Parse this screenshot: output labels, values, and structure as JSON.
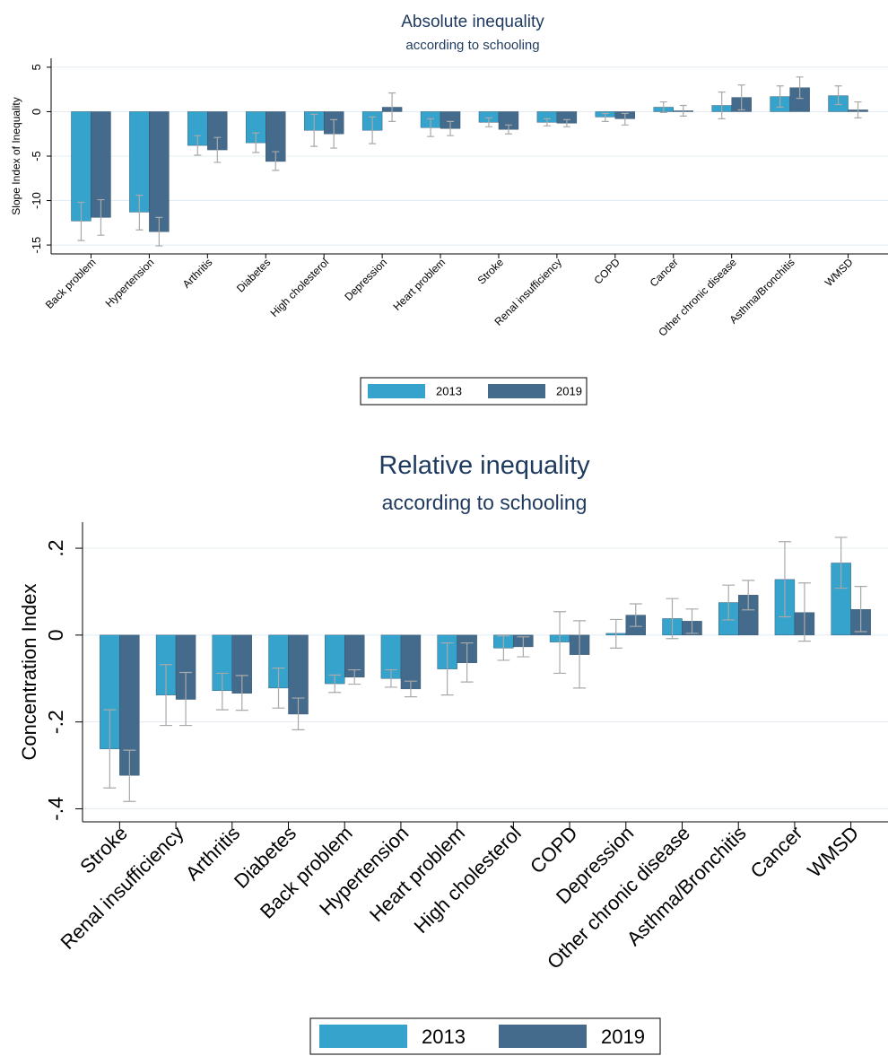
{
  "colors": {
    "y2013": "#35a3cc",
    "y2019": "#456b8c",
    "error": "#a9a9a9"
  },
  "chart_data": [
    {
      "type": "bar",
      "title": "Absolute inequality",
      "subtitle": "according to schooling",
      "ylabel": "Slope Index of Inequality",
      "ylim": [
        -16,
        6
      ],
      "yticks": [
        5,
        0,
        -5,
        -10,
        -15
      ],
      "ytick_labels": [
        "5",
        "0",
        "-5",
        "-10",
        "-15"
      ],
      "grid": true,
      "legend_position": "bottom",
      "categories": [
        "Back problem",
        "Hypertension",
        "Arthritis",
        "Diabetes",
        "High cholesterol",
        "Depression",
        "Heart problem",
        "Stroke",
        "Renal insufficiency",
        "COPD",
        "Cancer",
        "Other chronic disease",
        "Asthma/Bronchitis",
        "WMSD"
      ],
      "series": [
        {
          "name": "2013",
          "values": [
            -12.3,
            -11.3,
            -3.8,
            -3.5,
            -2.1,
            -2.1,
            -1.8,
            -1.2,
            -1.2,
            -0.6,
            0.5,
            0.7,
            1.7,
            1.8
          ],
          "lower": [
            -14.5,
            -13.3,
            -4.9,
            -4.6,
            -3.9,
            -3.6,
            -2.8,
            -1.7,
            -1.6,
            -1.1,
            -0.1,
            -0.8,
            0.5,
            0.8
          ],
          "upper": [
            -10.2,
            -9.4,
            -2.7,
            -2.4,
            -0.3,
            -0.6,
            -0.8,
            -0.7,
            -0.8,
            -0.2,
            1.1,
            2.2,
            2.9,
            2.9
          ]
        },
        {
          "name": "2019",
          "values": [
            -11.9,
            -13.5,
            -4.3,
            -5.6,
            -2.5,
            0.5,
            -1.9,
            -2.0,
            -1.3,
            -0.8,
            0.1,
            1.6,
            2.7,
            0.2
          ],
          "lower": [
            -13.9,
            -15.1,
            -5.7,
            -6.6,
            -4.1,
            -1.1,
            -2.7,
            -2.5,
            -1.7,
            -1.5,
            -0.5,
            0.2,
            1.5,
            -0.7
          ],
          "upper": [
            -9.9,
            -11.9,
            -2.9,
            -4.5,
            -0.9,
            2.1,
            -1.1,
            -1.5,
            -0.9,
            -0.2,
            0.7,
            3.0,
            3.9,
            1.1
          ]
        }
      ]
    },
    {
      "type": "bar",
      "title": "Relative inequality",
      "subtitle": "according to schooling",
      "ylabel": "Concentration Index",
      "ylim": [
        -0.43,
        0.26
      ],
      "yticks": [
        0.2,
        0,
        -0.2,
        -0.4
      ],
      "ytick_labels": [
        ".2",
        "0",
        "-.2",
        "-.4"
      ],
      "grid": true,
      "legend_position": "bottom",
      "categories": [
        "Stroke",
        "Renal insufficiency",
        "Arthritis",
        "Diabetes",
        "Back problem",
        "Hypertension",
        "Heart problem",
        "High cholesterol",
        "COPD",
        "Depression",
        "Other chronic disease",
        "Asthma/Bronchitis",
        "Cancer",
        "WMSD"
      ],
      "series": [
        {
          "name": "2013",
          "values": [
            -0.262,
            -0.138,
            -0.128,
            -0.122,
            -0.112,
            -0.1,
            -0.078,
            -0.03,
            -0.016,
            0.004,
            0.038,
            0.075,
            0.128,
            0.166
          ],
          "lower": [
            -0.352,
            -0.208,
            -0.172,
            -0.168,
            -0.132,
            -0.12,
            -0.138,
            -0.058,
            -0.088,
            -0.03,
            -0.008,
            0.035,
            0.042,
            0.108
          ],
          "upper": [
            -0.172,
            -0.068,
            -0.088,
            -0.076,
            -0.092,
            -0.08,
            -0.018,
            -0.002,
            0.054,
            0.036,
            0.084,
            0.115,
            0.215,
            0.225
          ]
        },
        {
          "name": "2019",
          "values": [
            -0.323,
            -0.148,
            -0.134,
            -0.182,
            -0.097,
            -0.124,
            -0.064,
            -0.027,
            -0.045,
            0.046,
            0.032,
            0.092,
            0.052,
            0.059
          ],
          "lower": [
            -0.383,
            -0.208,
            -0.173,
            -0.218,
            -0.113,
            -0.142,
            -0.108,
            -0.05,
            -0.122,
            0.02,
            0.004,
            0.058,
            -0.014,
            0.008
          ],
          "upper": [
            -0.265,
            -0.086,
            -0.093,
            -0.145,
            -0.08,
            -0.106,
            -0.018,
            -0.004,
            0.033,
            0.072,
            0.06,
            0.126,
            0.12,
            0.112
          ]
        }
      ]
    }
  ]
}
